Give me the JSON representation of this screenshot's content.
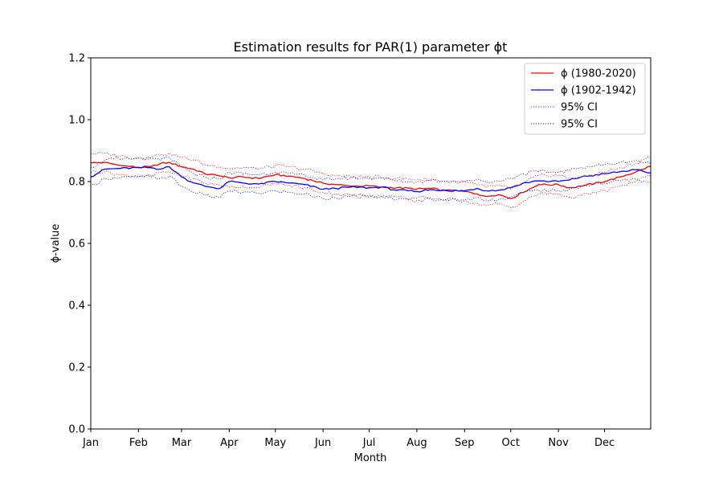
{
  "chart_data": {
    "type": "line",
    "title": "Estimation results for PAR(1) parameter ϕt",
    "xlabel": "Month",
    "ylabel": "ϕ-value",
    "xlim": [
      1,
      365
    ],
    "ylim": [
      0.0,
      1.2
    ],
    "yticks": [
      "0.0",
      "0.2",
      "0.4",
      "0.6",
      "0.8",
      "1.0",
      "1.2"
    ],
    "xticks": [
      {
        "day": 1,
        "label": "Jan"
      },
      {
        "day": 32,
        "label": "Feb"
      },
      {
        "day": 60,
        "label": "Mar"
      },
      {
        "day": 91,
        "label": "Apr"
      },
      {
        "day": 121,
        "label": "May"
      },
      {
        "day": 152,
        "label": "Jun"
      },
      {
        "day": 182,
        "label": "Jul"
      },
      {
        "day": 213,
        "label": "Aug"
      },
      {
        "day": 244,
        "label": "Sep"
      },
      {
        "day": 274,
        "label": "Oct"
      },
      {
        "day": 305,
        "label": "Nov"
      },
      {
        "day": 335,
        "label": "Dec"
      }
    ],
    "x": [
      1,
      10,
      20,
      32,
      40,
      46,
      52,
      60,
      68,
      75,
      85,
      91,
      100,
      110,
      121,
      130,
      140,
      152,
      160,
      170,
      182,
      190,
      200,
      213,
      222,
      232,
      244,
      252,
      258,
      266,
      274,
      282,
      292,
      305,
      312,
      320,
      335,
      345,
      355,
      365
    ],
    "series": [
      {
        "name": "ϕ (1980-2020)",
        "color": "#ff0000",
        "style": "solid",
        "values": [
          0.86,
          0.862,
          0.852,
          0.846,
          0.848,
          0.858,
          0.862,
          0.848,
          0.84,
          0.825,
          0.818,
          0.812,
          0.815,
          0.81,
          0.822,
          0.818,
          0.81,
          0.795,
          0.79,
          0.785,
          0.786,
          0.782,
          0.78,
          0.776,
          0.778,
          0.77,
          0.768,
          0.76,
          0.752,
          0.758,
          0.745,
          0.765,
          0.79,
          0.79,
          0.78,
          0.785,
          0.8,
          0.815,
          0.83,
          0.85
        ]
      },
      {
        "name": "ϕ (1902-1942)",
        "color": "#0000ff",
        "style": "solid",
        "values": [
          0.815,
          0.84,
          0.842,
          0.845,
          0.845,
          0.84,
          0.848,
          0.815,
          0.795,
          0.785,
          0.778,
          0.8,
          0.795,
          0.792,
          0.8,
          0.795,
          0.79,
          0.775,
          0.778,
          0.782,
          0.78,
          0.782,
          0.772,
          0.768,
          0.774,
          0.772,
          0.77,
          0.778,
          0.77,
          0.772,
          0.78,
          0.795,
          0.802,
          0.8,
          0.805,
          0.815,
          0.825,
          0.832,
          0.838,
          0.828
        ]
      },
      {
        "name": "95% CI",
        "color": "#ff0000",
        "style": "dotted",
        "values": [
          0.89,
          0.892,
          0.882,
          0.876,
          0.878,
          0.888,
          0.892,
          0.878,
          0.87,
          0.855,
          0.848,
          0.842,
          0.845,
          0.84,
          0.852,
          0.848,
          0.84,
          0.825,
          0.82,
          0.815,
          0.816,
          0.812,
          0.81,
          0.806,
          0.808,
          0.8,
          0.798,
          0.79,
          0.782,
          0.788,
          0.775,
          0.795,
          0.82,
          0.82,
          0.81,
          0.815,
          0.83,
          0.845,
          0.86,
          0.88
        ]
      },
      {
        "name": "",
        "color": "#ff0000",
        "style": "dotted",
        "values": [
          0.83,
          0.832,
          0.822,
          0.816,
          0.818,
          0.828,
          0.832,
          0.818,
          0.81,
          0.795,
          0.788,
          0.782,
          0.785,
          0.78,
          0.792,
          0.788,
          0.78,
          0.765,
          0.76,
          0.755,
          0.756,
          0.752,
          0.75,
          0.746,
          0.748,
          0.74,
          0.738,
          0.73,
          0.722,
          0.728,
          0.715,
          0.735,
          0.76,
          0.76,
          0.75,
          0.755,
          0.77,
          0.785,
          0.8,
          0.82
        ]
      },
      {
        "name": "95% CI",
        "color": "#0000ff",
        "style": "dotted",
        "values": [
          0.845,
          0.87,
          0.872,
          0.875,
          0.875,
          0.87,
          0.878,
          0.845,
          0.825,
          0.815,
          0.808,
          0.83,
          0.825,
          0.822,
          0.83,
          0.825,
          0.82,
          0.805,
          0.808,
          0.812,
          0.81,
          0.812,
          0.802,
          0.798,
          0.804,
          0.802,
          0.8,
          0.808,
          0.8,
          0.802,
          0.81,
          0.825,
          0.832,
          0.83,
          0.835,
          0.845,
          0.855,
          0.862,
          0.868,
          0.858
        ]
      },
      {
        "name": "",
        "color": "#0000ff",
        "style": "dotted",
        "values": [
          0.785,
          0.81,
          0.812,
          0.815,
          0.815,
          0.81,
          0.818,
          0.785,
          0.765,
          0.755,
          0.748,
          0.77,
          0.765,
          0.762,
          0.77,
          0.765,
          0.76,
          0.745,
          0.748,
          0.752,
          0.75,
          0.752,
          0.742,
          0.738,
          0.744,
          0.742,
          0.74,
          0.748,
          0.74,
          0.742,
          0.75,
          0.765,
          0.772,
          0.77,
          0.775,
          0.785,
          0.795,
          0.802,
          0.808,
          0.798
        ]
      }
    ],
    "legend": {
      "placement": "top-right",
      "entries": [
        {
          "label": "ϕ (1980-2020)",
          "color": "#ff0000",
          "style": "solid"
        },
        {
          "label": "ϕ (1902-1942)",
          "color": "#0000ff",
          "style": "solid"
        },
        {
          "label": "95% CI",
          "color": "#ff0000",
          "style": "dotted"
        },
        {
          "label": "95% CI",
          "color": "#0000ff",
          "style": "dotted"
        }
      ]
    },
    "grid": false
  }
}
